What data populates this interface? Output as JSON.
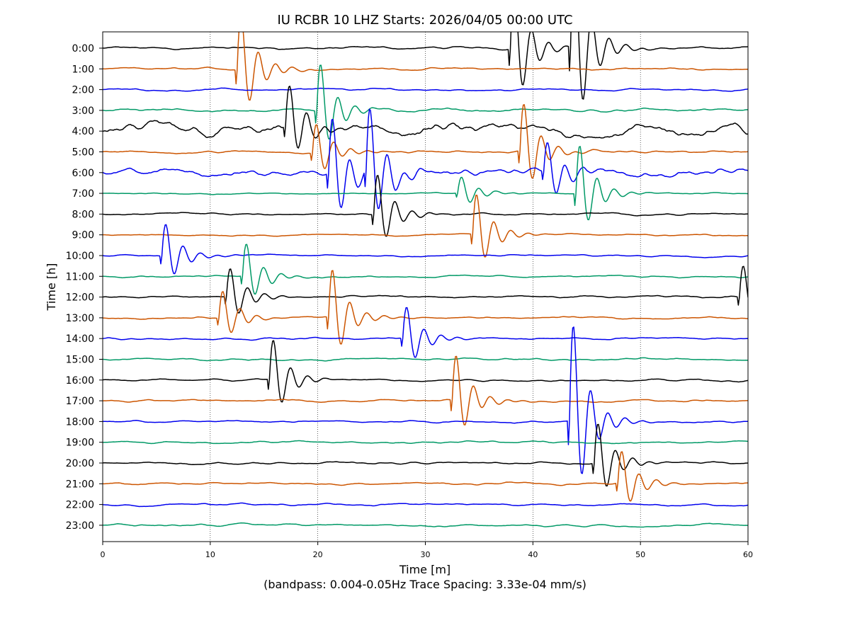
{
  "chart_data": {
    "type": "line",
    "subtype": "helicorder",
    "title": "IU RCBR 10 LHZ  Starts: 2026/04/05 00:00 UTC",
    "xlabel": "Time [m]",
    "ylabel": "Time [h]",
    "footer": "(bandpass: 0.004-0.05Hz  Trace Spacing: 3.33e-04 mm/s)",
    "xlim": [
      0,
      60
    ],
    "xticks": [
      0,
      10,
      20,
      30,
      40,
      50,
      60
    ],
    "x_grid": "dotted vertical lines at 10 min intervals",
    "rows": [
      "0:00",
      "1:00",
      "2:00",
      "3:00",
      "4:00",
      "5:00",
      "6:00",
      "7:00",
      "8:00",
      "9:00",
      "10:00",
      "11:00",
      "12:00",
      "13:00",
      "14:00",
      "15:00",
      "16:00",
      "17:00",
      "18:00",
      "19:00",
      "20:00",
      "21:00",
      "22:00",
      "23:00"
    ],
    "colors": [
      "#000000",
      "#cc5500",
      "#0000ee",
      "#009966"
    ],
    "color_cycle": "each hour row uses colors[row % 4]",
    "noise": [
      0.12,
      0.1,
      0.1,
      0.15,
      0.55,
      0.12,
      0.35,
      0.07,
      0.1,
      0.08,
      0.08,
      0.09,
      0.1,
      0.09,
      0.1,
      0.1,
      0.1,
      0.1,
      0.1,
      0.1,
      0.1,
      0.1,
      0.1,
      0.1
    ],
    "events": [
      {
        "row": 1,
        "minute": 12.5,
        "amplitude": 3.5
      },
      {
        "row": 3,
        "minute": 19.9,
        "amplitude": 3.0
      },
      {
        "row": 4,
        "minute": 17.0,
        "amplitude": 2.5
      },
      {
        "row": 5,
        "minute": 19.5,
        "amplitude": 1.8
      },
      {
        "row": 6,
        "minute": 21.0,
        "amplitude": 3.5
      },
      {
        "row": 6,
        "minute": 24.5,
        "amplitude": 4.0
      },
      {
        "row": 0,
        "minute": 37.9,
        "amplitude": 4.0
      },
      {
        "row": 0,
        "minute": 43.5,
        "amplitude": 6.0
      },
      {
        "row": 5,
        "minute": 38.8,
        "amplitude": 3.0
      },
      {
        "row": 6,
        "minute": 41.0,
        "amplitude": 2.0
      },
      {
        "row": 7,
        "minute": 44.0,
        "amplitude": 3.0
      },
      {
        "row": 8,
        "minute": 25.2,
        "amplitude": 2.5
      },
      {
        "row": 9,
        "minute": 34.4,
        "amplitude": 2.5
      },
      {
        "row": 10,
        "minute": 5.5,
        "amplitude": 2.0
      },
      {
        "row": 11,
        "minute": 13.0,
        "amplitude": 2.0
      },
      {
        "row": 12,
        "minute": 11.5,
        "amplitude": 1.8
      },
      {
        "row": 12,
        "minute": 59.2,
        "amplitude": 2.0
      },
      {
        "row": 13,
        "minute": 21.0,
        "amplitude": 3.0
      },
      {
        "row": 13,
        "minute": 10.8,
        "amplitude": 1.7
      },
      {
        "row": 14,
        "minute": 27.9,
        "amplitude": 2.0
      },
      {
        "row": 16,
        "minute": 15.5,
        "amplitude": 2.5
      },
      {
        "row": 17,
        "minute": 32.5,
        "amplitude": 2.8
      },
      {
        "row": 18,
        "minute": 43.4,
        "amplitude": 6.0
      },
      {
        "row": 20,
        "minute": 45.7,
        "amplitude": 2.5
      },
      {
        "row": 21,
        "minute": 47.9,
        "amplitude": 2.0
      },
      {
        "row": 7,
        "minute": 33.0,
        "amplitude": 1.0
      }
    ]
  }
}
